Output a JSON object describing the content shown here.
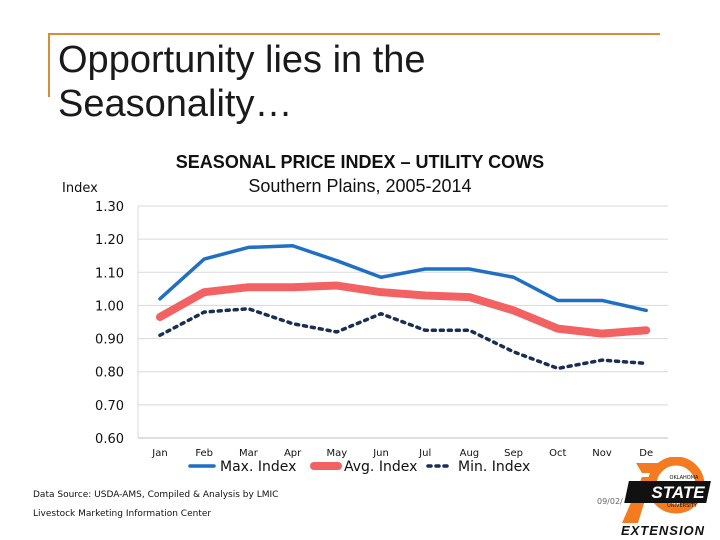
{
  "slide": {
    "title_line1": "Opportunity lies in the",
    "title_line2": "Seasonality…",
    "source_line": "Data Source:  USDA-AMS, Compiled & Analysis by LMIC",
    "org_line": "Livestock Marketing Information Center",
    "date_partial": "09/02/",
    "logo": {
      "line1": "OKLAHOMA",
      "line2": "STATE",
      "line3": "UNIVERSITY",
      "line4": "EXTENSION"
    }
  },
  "colors": {
    "max": "#1f6fc4",
    "avg": "#f26262",
    "min": "#1a2e55",
    "grid": "#d9d9d9",
    "accent": "#d98a3a"
  },
  "chart_data": {
    "type": "line",
    "title": "SEASONAL PRICE INDEX – UTILITY COWS",
    "subtitle": "Southern Plains, 2005-2014",
    "ylabel": "Index",
    "ylim": [
      0.6,
      1.3
    ],
    "yticks": [
      "1.30",
      "1.20",
      "1.10",
      "1.00",
      "0.90",
      "0.80",
      "0.70",
      "0.60"
    ],
    "categories": [
      "Jan",
      "Feb",
      "Mar",
      "Apr",
      "May",
      "Jun",
      "Jul",
      "Aug",
      "Sep",
      "Oct",
      "Nov",
      "De"
    ],
    "series": [
      {
        "name": "Max. Index",
        "key": "max",
        "values": [
          1.02,
          1.14,
          1.175,
          1.18,
          1.135,
          1.085,
          1.11,
          1.11,
          1.085,
          1.015,
          1.015,
          0.985
        ]
      },
      {
        "name": "Avg. Index",
        "key": "avg",
        "values": [
          0.965,
          1.04,
          1.055,
          1.055,
          1.06,
          1.04,
          1.03,
          1.025,
          0.985,
          0.93,
          0.915,
          0.925
        ]
      },
      {
        "name": "Min. Index",
        "key": "min",
        "values": [
          0.91,
          0.98,
          0.99,
          0.945,
          0.92,
          0.975,
          0.925,
          0.925,
          0.86,
          0.81,
          0.835,
          0.825
        ]
      }
    ]
  }
}
